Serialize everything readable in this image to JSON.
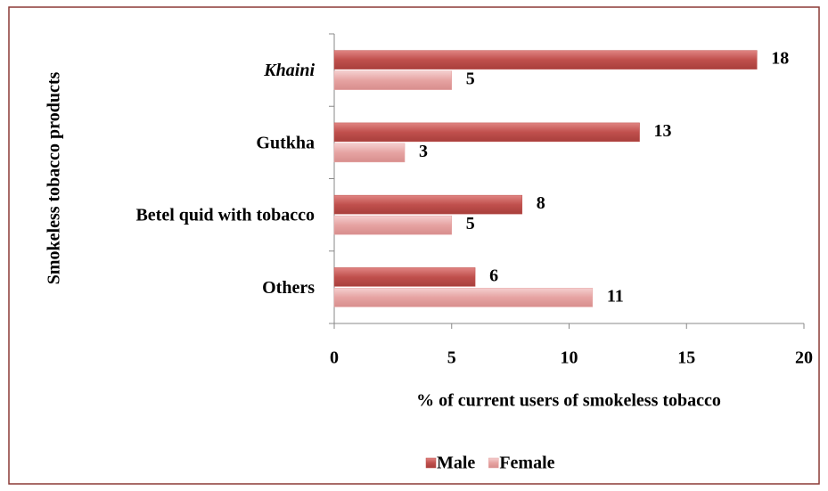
{
  "chart_data": {
    "type": "hbar",
    "categories": [
      "Khaini",
      "Gutkha",
      "Betel quid with tobacco",
      "Others"
    ],
    "series": [
      {
        "name": "Male",
        "color": "#c0504d",
        "values": [
          18,
          13,
          8,
          6
        ]
      },
      {
        "name": "Female",
        "color": "#e6a3a2",
        "values": [
          5,
          3,
          5,
          11
        ]
      }
    ],
    "xlim": [
      0,
      20
    ],
    "xticks": [
      0,
      5,
      10,
      15,
      20
    ],
    "xlabel": "% of current users of smokeless tobacco",
    "ylabel": "Smokeless tobacco products",
    "legend": "bottom"
  }
}
